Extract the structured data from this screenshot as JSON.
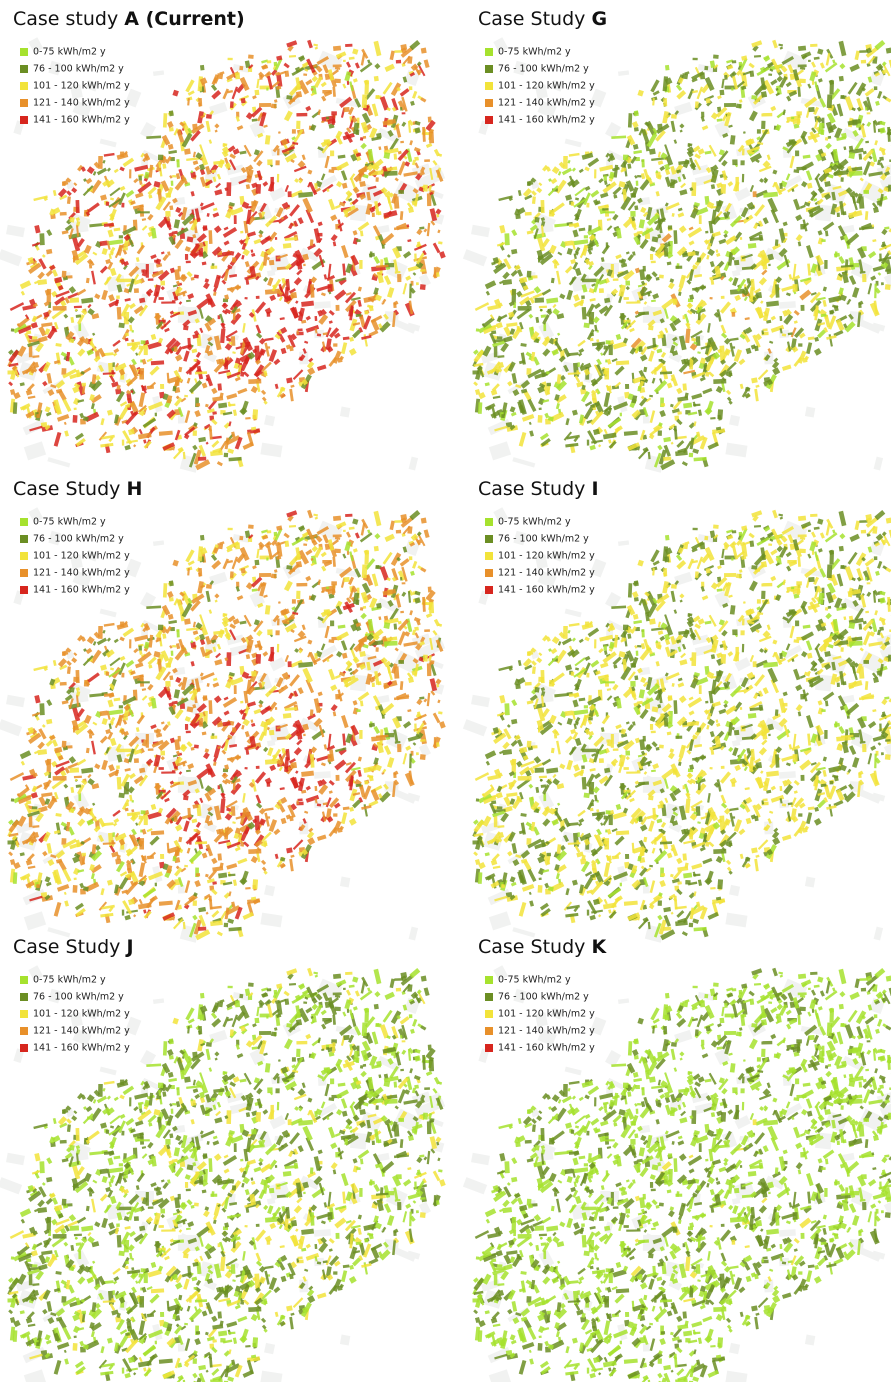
{
  "panels": [
    {
      "title": "Case study",
      "title_bold": "A (Current)"
    },
    {
      "title": "Case Study",
      "title_bold": "G"
    },
    {
      "title": "Case Study",
      "title_bold": "H"
    },
    {
      "title": "Case Study",
      "title_bold": "I"
    },
    {
      "title": "Case Study",
      "title_bold": "J"
    },
    {
      "title": "Case Study",
      "title_bold": "K"
    }
  ],
  "legend": [
    {
      "label": "0-75 kWh/m2 y",
      "color": "#a6e22e"
    },
    {
      "label": "76 - 100 kWh/m2 y",
      "color": "#6b8e23"
    },
    {
      "label": "101 - 120 kWh/m2 y",
      "color": "#f2e33a"
    },
    {
      "label": "121 - 140 kWh/m2 y",
      "color": "#e8902a"
    },
    {
      "label": "141 - 160 kWh/m2 y",
      "color": "#d7261e"
    }
  ]
}
